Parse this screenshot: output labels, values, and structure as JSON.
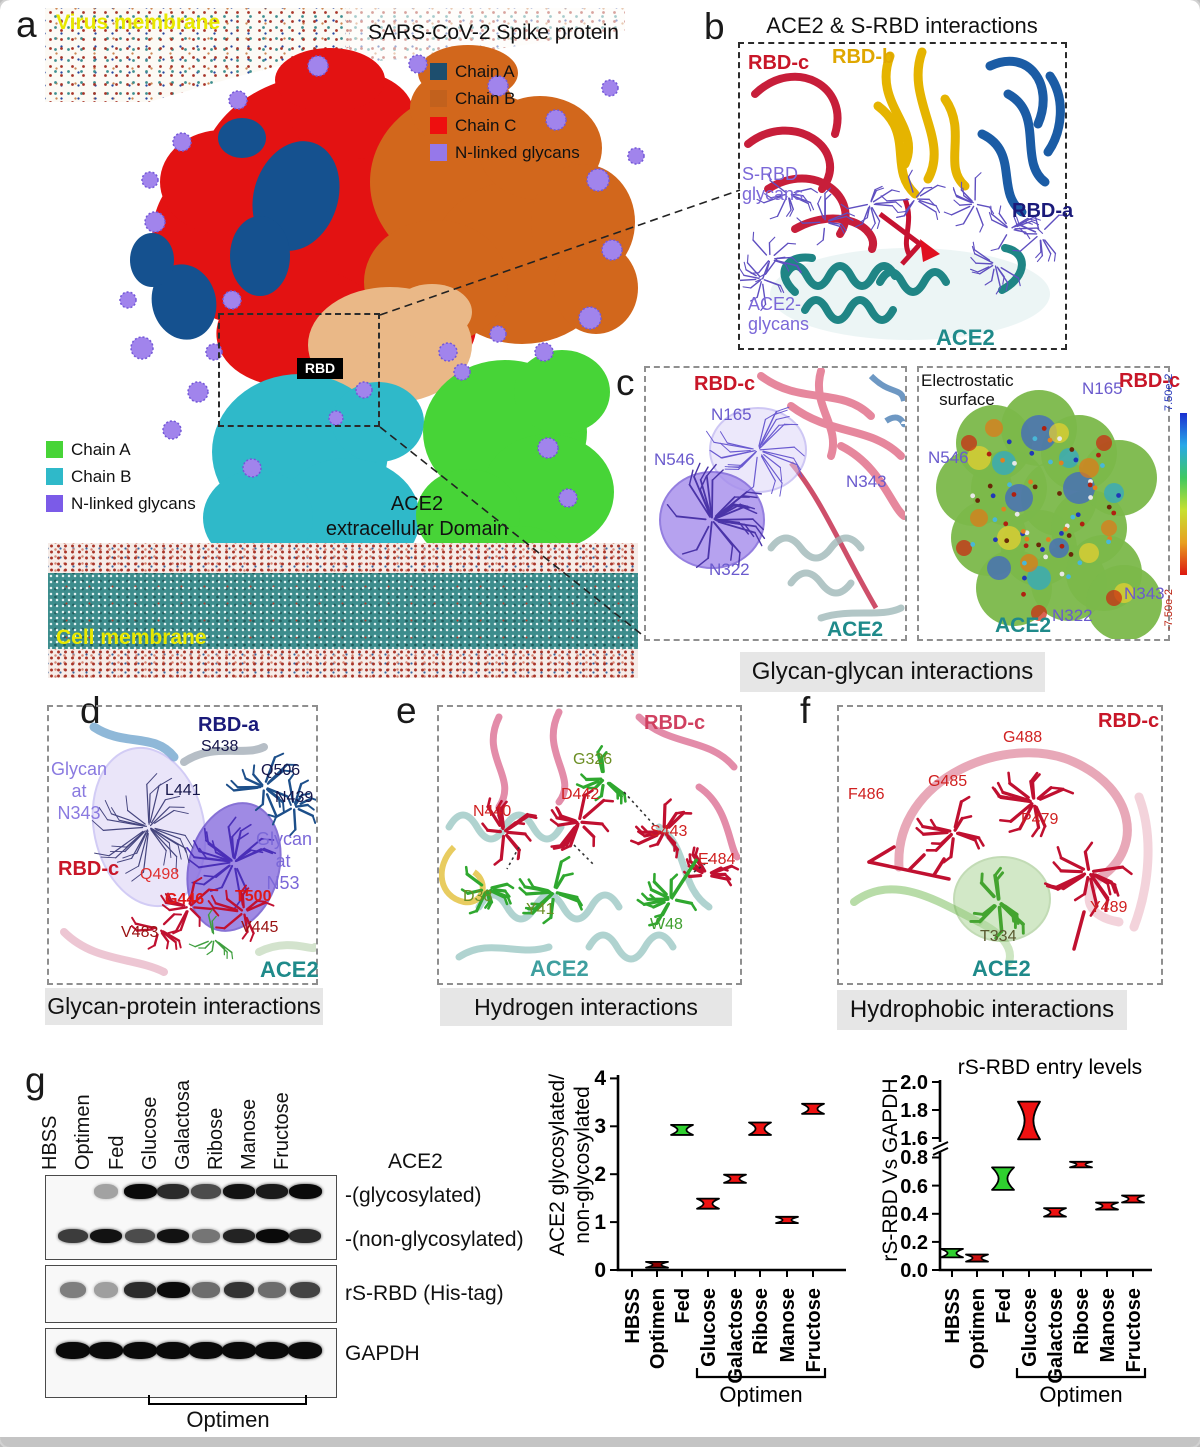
{
  "panel_a": {
    "label": "a",
    "membrane_label": "Virus membrane",
    "title": "SARS-CoV-2 Spike protein",
    "legend_spike": [
      {
        "label": "Chain A",
        "color": "#1d4e6e"
      },
      {
        "label": "Chain B",
        "color": "#c2611d"
      },
      {
        "label": "Chain C",
        "color": "#ee0f0f"
      },
      {
        "label": "N-linked glycans",
        "color": "#9678ea"
      }
    ],
    "legend_ace2": [
      {
        "label": "Chain A",
        "color": "#47d437"
      },
      {
        "label": "Chain B",
        "color": "#2fb9c9"
      },
      {
        "label": "N-linked glycans",
        "color": "#7b5be8"
      }
    ],
    "rbd_tag": "RBD",
    "ace2_domain": [
      "ACE2",
      "extracellular Domain"
    ],
    "cell_membrane_label": "Cell membrane"
  },
  "panel_b": {
    "label": "b",
    "title": "ACE2 & S-RBD  interactions",
    "rbd_c": "RBD-c",
    "rbd_b": "RBD-b",
    "rbd_a": "RBD-a",
    "s_rbd_glycans": [
      "S-RBD",
      "glycans"
    ],
    "ace2_glycans": [
      "ACE2-",
      "glycans"
    ],
    "ace2": "ACE2"
  },
  "panel_c": {
    "label": "c",
    "caption": "Glycan-glycan interactions",
    "left": {
      "rbd_c": "RBD-c",
      "n165": "N165",
      "n546": "N546",
      "n343": "N343",
      "n322": "N322",
      "ace2": "ACE2"
    },
    "right": {
      "electrostatic": [
        "Electrostatic",
        "surface"
      ],
      "rbd_c": "RBD-c",
      "n165": "N165",
      "n546": "N546",
      "n343": "N343",
      "n322": "N322",
      "ace2": "ACE2"
    },
    "colorbar": {
      "top": "7.50e-2",
      "bottom": "-7.50e-2",
      "gradient": [
        "#1a2fd0",
        "#28a8e8",
        "#3fc860",
        "#c8e030",
        "#e8a020",
        "#dd1810"
      ]
    }
  },
  "panel_d": {
    "label": "d",
    "caption": "Glycan-protein interactions",
    "rbd_a": "RBD-a",
    "s438": "S438",
    "q506": "Q506",
    "n439": "N439",
    "l441": "L441",
    "glycan_n343": [
      "Glycan",
      "at",
      "N343"
    ],
    "glycan_n53": [
      "Glycan",
      "at",
      "N53"
    ],
    "rbd_c": "RBD-c",
    "q498": "Q498",
    "g446": "G446",
    "t500": "T500",
    "v483": "V483",
    "v445": "V445",
    "ace2": "ACE2"
  },
  "panel_e": {
    "label": "e",
    "caption": "Hydrogen interactions",
    "rbd_c": "RBD-c",
    "g326": "G326",
    "d442": "D442",
    "n440": "N440",
    "s443": "S443",
    "e484": "E484",
    "d38": "D38",
    "y41": "Y41",
    "w48": "W48",
    "ace2": "ACE2"
  },
  "panel_f": {
    "label": "f",
    "caption": "Hydrophobic interactions",
    "rbd_c": "RBD-c",
    "g488": "G488",
    "g485": "G485",
    "f486": "F486",
    "p479": "P479",
    "y489": "Y489",
    "t334": "T334",
    "ace2": "ACE2"
  },
  "panel_g": {
    "label": "g",
    "lanes": [
      "HBSS",
      "Optimen",
      "Fed",
      "Glucose",
      "Galactosa",
      "Ribose",
      "Manose",
      "Fructose"
    ],
    "row_labels": {
      "ace2": "ACE2",
      "glycosylated": "-(glycosylated)",
      "non_glycosylated": "-(non-glycosylated)",
      "rs_rbd": "rS-RBD (His-tag)",
      "gapdh": "GAPDH"
    },
    "bracket_label": "Optimen",
    "bands": {
      "glycosylated": [
        0,
        0.08,
        1,
        0.8,
        0.6,
        0.95,
        0.9,
        1
      ],
      "non_glycosylated": [
        0.7,
        0.95,
        0.6,
        0.95,
        0.35,
        0.85,
        1,
        0.8
      ],
      "rs_rbd": [
        0.3,
        0.1,
        0.8,
        1,
        0.4,
        0.75,
        0.4,
        0.65
      ],
      "gapdh": [
        1,
        1,
        1,
        1,
        1,
        1,
        1,
        1
      ]
    }
  },
  "chart_data": [
    {
      "type": "scatter",
      "title": "",
      "ylabel_lines": [
        "ACE2 glycosylated/",
        "non-glycosylated"
      ],
      "ylim": [
        0,
        4
      ],
      "yticks": [
        "0",
        "1",
        "2",
        "3",
        "4"
      ],
      "categories": [
        "HBSS",
        "Optimen",
        "Fed",
        "Glucose",
        "Galactose",
        "Ribose",
        "Manose",
        "Fructose"
      ],
      "bracket_label": "Optimen",
      "points": [
        {
          "category": "Optimen",
          "lo": 0.05,
          "hi": 0.17,
          "color": "#8b0000"
        },
        {
          "category": "Fed",
          "lo": 2.82,
          "hi": 3.03,
          "color": "#2fd02f"
        },
        {
          "category": "Glucose",
          "lo": 1.28,
          "hi": 1.49,
          "color": "#ee1111"
        },
        {
          "category": "Galactose",
          "lo": 1.82,
          "hi": 1.99,
          "color": "#ee1111"
        },
        {
          "category": "Ribose",
          "lo": 2.82,
          "hi": 3.08,
          "color": "#ee1111"
        },
        {
          "category": "Manose",
          "lo": 0.98,
          "hi": 1.11,
          "color": "#ee1111"
        },
        {
          "category": "Fructose",
          "lo": 3.26,
          "hi": 3.47,
          "color": "#ee1111"
        }
      ]
    },
    {
      "type": "scatter",
      "title": "rS-RBD entry levels",
      "ylabel": "rS-RBD Vs GAPDH",
      "axis_break": [
        0.9,
        1.5
      ],
      "yticks_lower": [
        "0.0",
        "0.2",
        "0.4",
        "0.6",
        "0.8"
      ],
      "yticks_upper": [
        "1.6",
        "1.8",
        "2.0"
      ],
      "categories": [
        "HBSS",
        "Optimen",
        "Fed",
        "Glucose",
        "Galactose",
        "Ribose",
        "Manose",
        "Fructose"
      ],
      "bracket_label": "Optimen",
      "points": [
        {
          "category": "HBSS",
          "lo": 0.09,
          "hi": 0.15,
          "color": "#2fd02f"
        },
        {
          "category": "Optimen",
          "lo": 0.06,
          "hi": 0.11,
          "color": "#cc1111"
        },
        {
          "category": "Fed",
          "lo": 0.57,
          "hi": 0.73,
          "color": "#2fd02f"
        },
        {
          "category": "Glucose",
          "lo": 1.59,
          "hi": 1.86,
          "color": "#ee1111"
        },
        {
          "category": "Galactose",
          "lo": 0.38,
          "hi": 0.44,
          "color": "#ee1111"
        },
        {
          "category": "Ribose",
          "lo": 0.73,
          "hi": 0.77,
          "color": "#ee1111"
        },
        {
          "category": "Manose",
          "lo": 0.43,
          "hi": 0.48,
          "color": "#ee1111"
        },
        {
          "category": "Fructose",
          "lo": 0.48,
          "hi": 0.53,
          "color": "#ee1111"
        }
      ]
    }
  ]
}
